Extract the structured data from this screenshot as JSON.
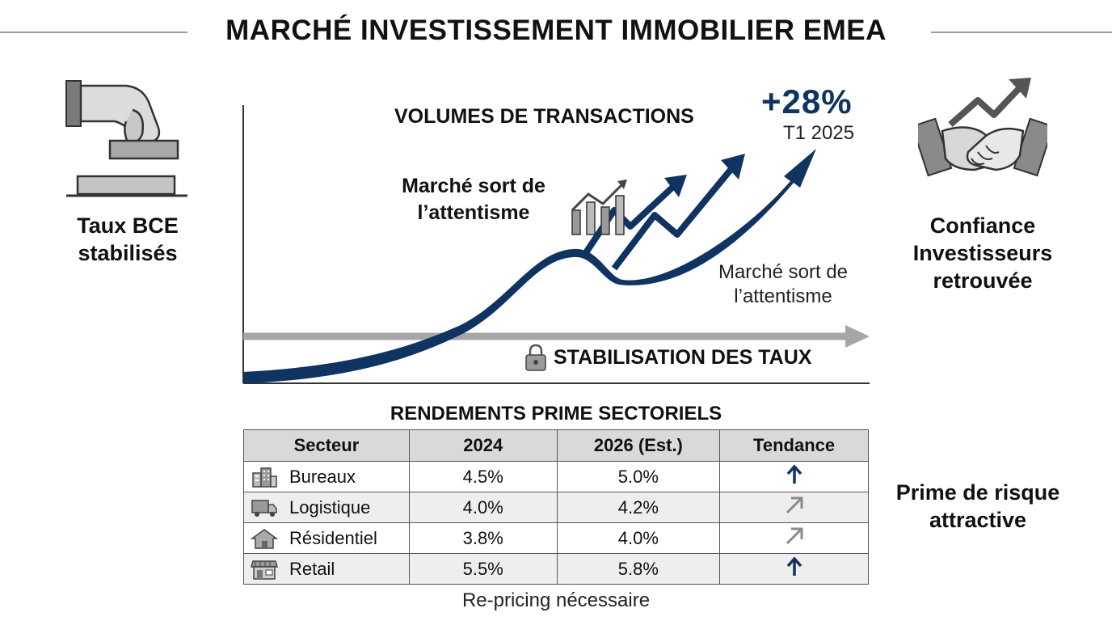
{
  "title": "MARCHÉ INVESTISSEMENT IMMOBILIER EMEA",
  "left": {
    "label_line1": "Taux BCE",
    "label_line2": "stabilisés",
    "icon": "ballot-box-hand-icon"
  },
  "right_top": {
    "label_line1": "Confiance",
    "label_line2": "Investisseurs",
    "label_line3": "retrouvée",
    "icon": "handshake-growth-icon"
  },
  "right_bottom": {
    "label_line1": "Prime de risque",
    "label_line2": "attractive"
  },
  "chart": {
    "title": "VOLUMES DE TRANSACTIONS",
    "callout_value": "+28%",
    "callout_period": "T1 2025",
    "annotation_bold_line1": "Marché sort de",
    "annotation_bold_line2": "l’attentisme",
    "annotation_light_line1": "Marché sort de",
    "annotation_light_line2": "l’attentisme",
    "baseline_label": "STABILISATION DES TAUX",
    "colors": {
      "curve": "#0f3461",
      "baseline": "#a6a6a6"
    }
  },
  "table": {
    "title": "RENDEMENTS PRIME SECTORIELS",
    "headers": [
      "Secteur",
      "2024",
      "2026 (Est.)",
      "Tendance"
    ],
    "rows": [
      {
        "sector": "Bureaux",
        "icon": "building-icon",
        "y2024": "4.5%",
        "y2026": "5.0%",
        "trend": "up-arrow-icon"
      },
      {
        "sector": "Logistique",
        "icon": "truck-icon",
        "y2024": "4.0%",
        "y2026": "4.2%",
        "trend": "up-right-arrow-icon"
      },
      {
        "sector": "Résidentiel",
        "icon": "house-icon",
        "y2024": "3.8%",
        "y2026": "4.0%",
        "trend": "up-right-arrow-icon"
      },
      {
        "sector": "Retail",
        "icon": "storefront-icon",
        "y2024": "5.5%",
        "y2026": "5.8%",
        "trend": "up-arrow-icon"
      }
    ],
    "footnote": "Re-pricing nécessaire"
  }
}
